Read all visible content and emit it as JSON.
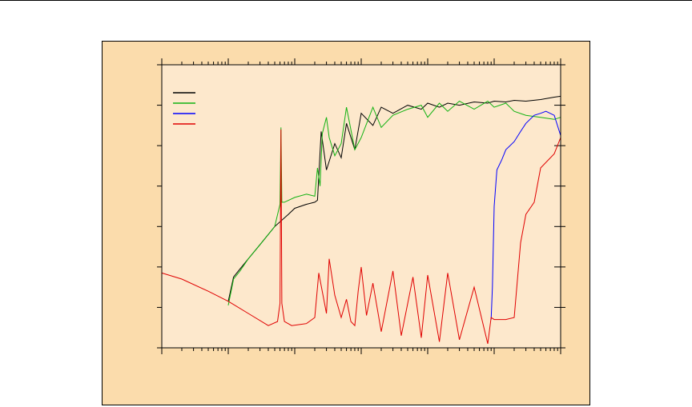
{
  "colors": {
    "frame_bg": "#fbdcac",
    "plot_bg": "#fde8cc",
    "axis": "#000000",
    "series_black": "#000000",
    "series_green": "#12b212",
    "series_blue": "#0000ff",
    "series_red": "#e00000"
  },
  "chart_data": {
    "type": "line",
    "title": "",
    "xlabel": "",
    "ylabel": "",
    "xscale": "log",
    "xlim": [
      0.01,
      10000
    ],
    "ylim": [
      0,
      7
    ],
    "grid": false,
    "legend": {
      "placement": "top-left",
      "entries": [
        {
          "label": "",
          "color": "#000000"
        },
        {
          "label": "",
          "color": "#12b212"
        },
        {
          "label": "",
          "color": "#0000ff"
        },
        {
          "label": "",
          "color": "#e00000"
        }
      ]
    },
    "series": [
      {
        "color": "#000000",
        "x": [
          0.1,
          0.12,
          0.15,
          0.2,
          0.3,
          0.5,
          0.8,
          1,
          1.5,
          2,
          2.2,
          2.5,
          3,
          4,
          5,
          6,
          8,
          10,
          15,
          20,
          30,
          50,
          80,
          100,
          150,
          200,
          300,
          500,
          800,
          1000,
          1500,
          2000,
          3000,
          5000,
          8000,
          10000
        ],
        "y": [
          1.15,
          1.75,
          1.95,
          2.2,
          2.55,
          3.0,
          3.3,
          3.45,
          3.55,
          3.6,
          3.65,
          5.35,
          4.4,
          5.05,
          4.7,
          5.55,
          4.9,
          5.8,
          5.5,
          5.95,
          5.8,
          6.0,
          5.9,
          6.05,
          5.95,
          6.05,
          6.0,
          6.08,
          6.05,
          6.1,
          6.08,
          6.12,
          6.1,
          6.14,
          6.2,
          6.22
        ]
      },
      {
        "color": "#12b212",
        "x": [
          0.1,
          0.12,
          0.15,
          0.2,
          0.3,
          0.5,
          0.6,
          0.62,
          0.64,
          0.7,
          1,
          1.5,
          2,
          2.2,
          2.4,
          2.6,
          3,
          3.3,
          4,
          5,
          6,
          8,
          10,
          15,
          20,
          30,
          50,
          80,
          100,
          150,
          200,
          300,
          500,
          800,
          1000,
          1500,
          2000,
          3000,
          5000,
          8000,
          10000
        ],
        "y": [
          1.05,
          1.7,
          1.9,
          2.2,
          2.55,
          3.0,
          3.55,
          5.45,
          3.6,
          3.6,
          3.72,
          3.8,
          3.75,
          4.45,
          4.0,
          5.3,
          5.7,
          5.2,
          4.75,
          5.05,
          5.95,
          4.9,
          5.2,
          5.95,
          5.45,
          5.75,
          5.9,
          6.0,
          5.7,
          6.05,
          5.85,
          6.1,
          5.9,
          6.1,
          5.95,
          6.05,
          5.85,
          5.75,
          5.7,
          5.65,
          5.7
        ]
      },
      {
        "color": "#0000ff",
        "x": [
          900,
          940,
          1000,
          1100,
          1300,
          1500,
          2000,
          2500,
          3000,
          4000,
          5000,
          6000,
          8000,
          10000
        ],
        "y": [
          0.7,
          1.5,
          3.5,
          4.4,
          4.65,
          4.9,
          5.1,
          5.35,
          5.55,
          5.75,
          5.8,
          5.85,
          5.75,
          5.25
        ]
      },
      {
        "color": "#e00000",
        "x": [
          0.01,
          0.02,
          0.05,
          0.1,
          0.2,
          0.4,
          0.55,
          0.6,
          0.62,
          0.64,
          0.7,
          0.9,
          1.5,
          2,
          2.3,
          3,
          3.3,
          4,
          5,
          6,
          7,
          8,
          9,
          10,
          12,
          15,
          20,
          30,
          40,
          60,
          80,
          100,
          150,
          200,
          300,
          500,
          800,
          900,
          1000,
          1500,
          2000,
          2500,
          3000,
          4000,
          5000,
          8000,
          10000
        ],
        "y": [
          1.85,
          1.7,
          1.4,
          1.15,
          0.85,
          0.55,
          0.65,
          1.1,
          5.4,
          1.1,
          0.65,
          0.55,
          0.6,
          0.75,
          1.85,
          0.85,
          2.2,
          1.3,
          0.75,
          1.2,
          0.65,
          0.55,
          1.4,
          2.0,
          0.8,
          1.6,
          0.4,
          1.9,
          0.3,
          1.75,
          0.25,
          1.8,
          0.15,
          1.85,
          0.2,
          1.5,
          0.1,
          0.75,
          0.7,
          0.7,
          0.75,
          2.6,
          3.3,
          3.6,
          4.45,
          4.8,
          5.2
        ]
      }
    ]
  }
}
